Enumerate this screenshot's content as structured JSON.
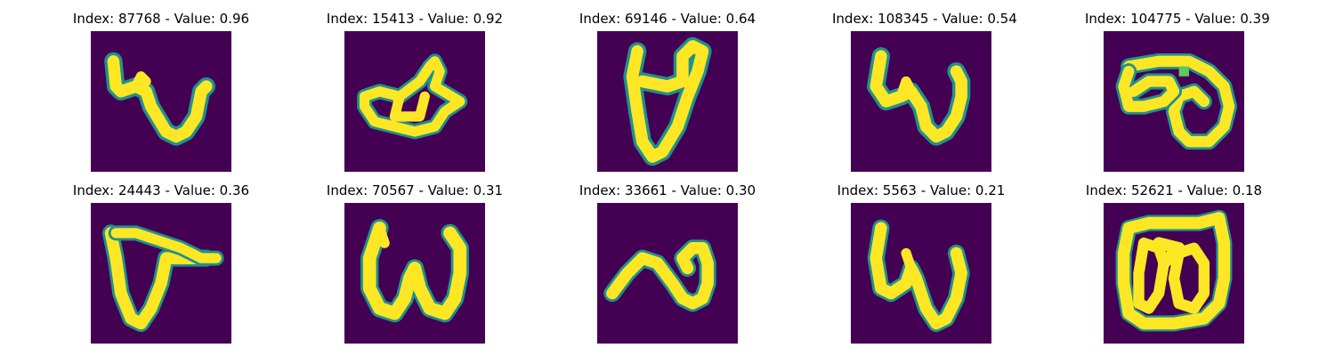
{
  "palette": {
    "background": "#440154",
    "stroke_edge": "#21918c",
    "stroke_mid": "#5ec962",
    "stroke_core": "#fde725"
  },
  "panels": [
    {
      "title": "Index: 87768 - Value: 0.96",
      "glyph": "w1"
    },
    {
      "title": "Index: 15413 - Value: 0.92",
      "glyph": "blob"
    },
    {
      "title": "Index: 69146 - Value: 0.64",
      "glyph": "cup"
    },
    {
      "title": "Index: 108345 - Value: 0.54",
      "glyph": "w2"
    },
    {
      "title": "Index: 104775 - Value: 0.39",
      "glyph": "loops"
    },
    {
      "title": "Index: 24443 - Value: 0.36",
      "glyph": "flag"
    },
    {
      "title": "Index: 70567 - Value: 0.31",
      "glyph": "w3"
    },
    {
      "title": "Index: 33661 - Value: 0.30",
      "glyph": "wave"
    },
    {
      "title": "Index: 5563 - Value: 0.21",
      "glyph": "w4"
    },
    {
      "title": "Index: 52621 - Value: 0.18",
      "glyph": "box"
    }
  ]
}
